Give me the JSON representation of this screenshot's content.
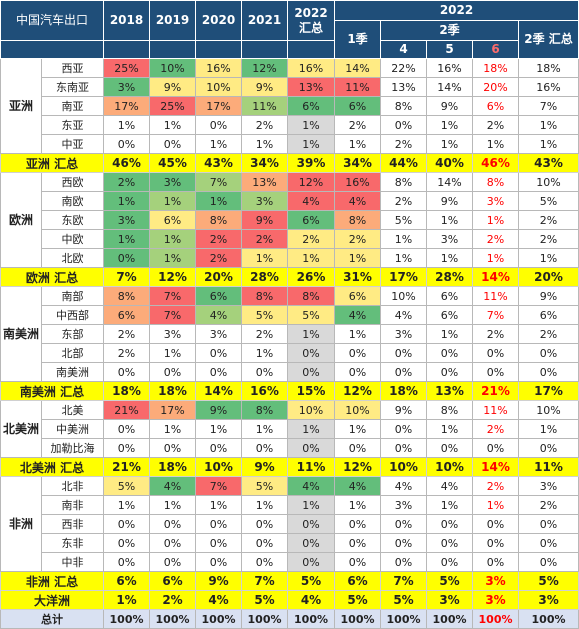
{
  "header": {
    "title": "中国汽车出口",
    "years": [
      "2018",
      "2019",
      "2020",
      "2021"
    ],
    "summary_2022": "2022 汇总",
    "year_2022": "2022",
    "q1": "1季",
    "q2": "2季",
    "months": [
      "4",
      "5",
      "6"
    ],
    "q2_total": "2季 汇总"
  },
  "colors": {
    "header_bg": "#1f4e79",
    "total_bg": "#ffff00",
    "grand_total_bg": "#d9e1f2",
    "highlight_red": "#ff0000",
    "summary_gray": "#d9d9d9",
    "heat_red": "#f8696b",
    "heat_yellow": "#ffeb84",
    "heat_green": "#63be7b"
  },
  "groups": [
    {
      "region": "亚洲",
      "rows": [
        {
          "name": "西亚",
          "values": [
            "25%",
            "10%",
            "16%",
            "12%",
            "16%",
            "14%",
            "22%",
            "16%",
            "18%",
            "18%"
          ]
        },
        {
          "name": "东南亚",
          "values": [
            "3%",
            "9%",
            "10%",
            "9%",
            "13%",
            "11%",
            "13%",
            "14%",
            "20%",
            "16%"
          ]
        },
        {
          "name": "南亚",
          "values": [
            "17%",
            "25%",
            "17%",
            "11%",
            "6%",
            "6%",
            "8%",
            "9%",
            "6%",
            "7%"
          ]
        },
        {
          "name": "东亚",
          "values": [
            "1%",
            "1%",
            "0%",
            "2%",
            "1%",
            "2%",
            "0%",
            "1%",
            "2%",
            "1%"
          ]
        },
        {
          "name": "中亚",
          "values": [
            "0%",
            "0%",
            "1%",
            "1%",
            "1%",
            "1%",
            "2%",
            "1%",
            "1%",
            "1%"
          ]
        }
      ],
      "total": {
        "name": "亚洲 汇总",
        "values": [
          "46%",
          "45%",
          "43%",
          "34%",
          "39%",
          "34%",
          "44%",
          "40%",
          "46%",
          "43%"
        ]
      }
    },
    {
      "region": "欧洲",
      "rows": [
        {
          "name": "西欧",
          "values": [
            "2%",
            "3%",
            "7%",
            "13%",
            "12%",
            "16%",
            "8%",
            "14%",
            "8%",
            "10%"
          ]
        },
        {
          "name": "南欧",
          "values": [
            "1%",
            "1%",
            "1%",
            "3%",
            "4%",
            "4%",
            "2%",
            "9%",
            "3%",
            "5%"
          ]
        },
        {
          "name": "东欧",
          "values": [
            "3%",
            "6%",
            "8%",
            "9%",
            "6%",
            "8%",
            "5%",
            "1%",
            "1%",
            "2%"
          ]
        },
        {
          "name": "中欧",
          "values": [
            "1%",
            "1%",
            "2%",
            "2%",
            "2%",
            "2%",
            "1%",
            "3%",
            "2%",
            "2%"
          ]
        },
        {
          "name": "北欧",
          "values": [
            "0%",
            "1%",
            "2%",
            "1%",
            "1%",
            "1%",
            "1%",
            "1%",
            "1%",
            "1%"
          ]
        }
      ],
      "total": {
        "name": "欧洲 汇总",
        "values": [
          "7%",
          "12%",
          "20%",
          "28%",
          "26%",
          "31%",
          "17%",
          "28%",
          "14%",
          "20%"
        ]
      }
    },
    {
      "region": "南美洲",
      "rows": [
        {
          "name": "南部",
          "values": [
            "8%",
            "7%",
            "6%",
            "8%",
            "8%",
            "6%",
            "10%",
            "6%",
            "11%",
            "9%"
          ]
        },
        {
          "name": "中西部",
          "values": [
            "6%",
            "7%",
            "4%",
            "5%",
            "5%",
            "4%",
            "4%",
            "6%",
            "7%",
            "6%"
          ]
        },
        {
          "name": "东部",
          "values": [
            "2%",
            "3%",
            "3%",
            "2%",
            "1%",
            "1%",
            "3%",
            "1%",
            "2%",
            "2%"
          ]
        },
        {
          "name": "北部",
          "values": [
            "2%",
            "1%",
            "0%",
            "1%",
            "0%",
            "0%",
            "0%",
            "0%",
            "0%",
            "0%"
          ]
        },
        {
          "name": "南美洲",
          "values": [
            "0%",
            "0%",
            "0%",
            "0%",
            "0%",
            "0%",
            "0%",
            "0%",
            "0%",
            "0%"
          ]
        }
      ],
      "total": {
        "name": "南美洲 汇总",
        "values": [
          "18%",
          "18%",
          "14%",
          "16%",
          "15%",
          "12%",
          "18%",
          "13%",
          "21%",
          "17%"
        ]
      }
    },
    {
      "region": "北美洲",
      "rows": [
        {
          "name": "北美",
          "values": [
            "21%",
            "17%",
            "9%",
            "8%",
            "10%",
            "10%",
            "9%",
            "8%",
            "11%",
            "10%"
          ]
        },
        {
          "name": "中美洲",
          "values": [
            "0%",
            "1%",
            "1%",
            "1%",
            "1%",
            "1%",
            "0%",
            "1%",
            "2%",
            "1%"
          ]
        },
        {
          "name": "加勒比海",
          "values": [
            "0%",
            "0%",
            "0%",
            "0%",
            "0%",
            "0%",
            "0%",
            "0%",
            "0%",
            "0%"
          ]
        }
      ],
      "total": {
        "name": "北美洲 汇总",
        "values": [
          "21%",
          "18%",
          "10%",
          "9%",
          "11%",
          "12%",
          "10%",
          "10%",
          "14%",
          "11%"
        ]
      }
    },
    {
      "region": "非洲",
      "rows": [
        {
          "name": "北非",
          "values": [
            "5%",
            "4%",
            "7%",
            "5%",
            "4%",
            "4%",
            "4%",
            "4%",
            "2%",
            "3%"
          ]
        },
        {
          "name": "南非",
          "values": [
            "1%",
            "1%",
            "1%",
            "1%",
            "1%",
            "1%",
            "3%",
            "1%",
            "1%",
            "2%"
          ]
        },
        {
          "name": "西非",
          "values": [
            "0%",
            "0%",
            "0%",
            "0%",
            "0%",
            "0%",
            "0%",
            "0%",
            "0%",
            "0%"
          ]
        },
        {
          "name": "东非",
          "values": [
            "0%",
            "0%",
            "0%",
            "0%",
            "0%",
            "0%",
            "0%",
            "0%",
            "0%",
            "0%"
          ]
        },
        {
          "name": "中非",
          "values": [
            "0%",
            "0%",
            "0%",
            "0%",
            "0%",
            "0%",
            "0%",
            "0%",
            "0%",
            "0%"
          ]
        }
      ],
      "total": {
        "name": "非洲 汇总",
        "values": [
          "6%",
          "6%",
          "9%",
          "7%",
          "5%",
          "6%",
          "7%",
          "5%",
          "3%",
          "5%"
        ]
      }
    }
  ],
  "oceania": {
    "name": "大洋洲",
    "values": [
      "1%",
      "2%",
      "4%",
      "5%",
      "4%",
      "5%",
      "5%",
      "3%",
      "3%",
      "3%"
    ]
  },
  "grand_total": {
    "name": "总计",
    "values": [
      "100%",
      "100%",
      "100%",
      "100%",
      "100%",
      "100%",
      "100%",
      "100%",
      "100%",
      "100%"
    ]
  },
  "cell_colors": {
    "西亚": [
      "#f8696b",
      "#63be7b",
      "#ffeb84",
      "#63be7b",
      "#ffeb84",
      "#ffeb84"
    ],
    "东南亚": [
      "#63be7b",
      "#ffeb84",
      "#ffeb84",
      "#ffeb84",
      "#f8696b",
      "#f8696b"
    ],
    "南亚": [
      "#fcab7a",
      "#f8696b",
      "#fcab7a",
      "#a5d17c",
      "#63be7b",
      "#63be7b"
    ],
    "西欧": [
      "#63be7b",
      "#63be7b",
      "#a5d17c",
      "#fcab7a",
      "#f8696b",
      "#f8696b"
    ],
    "南欧": [
      "#63be7b",
      "#a5d17c",
      "#63be7b",
      "#a5d17c",
      "#f8696b",
      "#f8696b"
    ],
    "东欧": [
      "#63be7b",
      "#ffeb84",
      "#fcab7a",
      "#f8696b",
      "#63be7b",
      "#fcab7a"
    ],
    "中欧": [
      "#63be7b",
      "#a5d17c",
      "#f8696b",
      "#f8696b",
      "#ffeb84",
      "#ffeb84"
    ],
    "北欧": [
      "#63be7b",
      "#a5d17c",
      "#f8696b",
      "#ffeb84",
      "#ffeb84",
      "#ffeb84"
    ],
    "南部": [
      "#fcab7a",
      "#f8696b",
      "#63be7b",
      "#f8696b",
      "#f8696b",
      "#ffeb84"
    ],
    "中西部": [
      "#fcab7a",
      "#f8696b",
      "#a5d17c",
      "#ffeb84",
      "#ffeb84",
      "#63be7b"
    ],
    "北美": [
      "#f8696b",
      "#fcab7a",
      "#63be7b",
      "#63be7b",
      "#ffeb84",
      "#ffeb84"
    ],
    "北非": [
      "#ffeb84",
      "#63be7b",
      "#f8696b",
      "#ffeb84",
      "#63be7b",
      "#63be7b"
    ]
  },
  "red_text": {
    "西亚": [
      8
    ],
    "东南亚": [
      8
    ],
    "南亚": [
      8
    ],
    "亚洲 汇总": [
      8
    ],
    "西欧": [
      8
    ],
    "南欧": [
      8
    ],
    "东欧": [
      8
    ],
    "中欧": [
      8
    ],
    "北欧": [
      8
    ],
    "欧洲 汇总": [
      8
    ],
    "南部": [
      8
    ],
    "中西部": [
      8
    ],
    "南美洲 汇总": [
      8
    ],
    "北美": [
      8
    ],
    "中美洲": [
      8
    ],
    "北美洲 汇总": [
      8
    ],
    "北非": [
      8
    ],
    "南非": [
      8
    ],
    "非洲 汇总": [
      8
    ],
    "大洋洲": [
      8
    ],
    "总计": [
      8
    ]
  }
}
